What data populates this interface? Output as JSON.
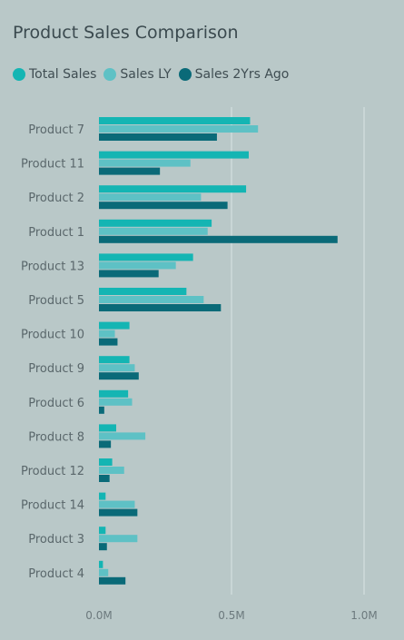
{
  "chart_data": {
    "type": "bar",
    "orientation": "horizontal",
    "title": "Product Sales Comparison",
    "categories": [
      "Product 7",
      "Product 11",
      "Product 2",
      "Product 1",
      "Product 13",
      "Product 5",
      "Product 10",
      "Product 9",
      "Product 6",
      "Product 8",
      "Product 12",
      "Product 14",
      "Product 3",
      "Product 4"
    ],
    "series": [
      {
        "name": "Total Sales",
        "color": "#14b5b3",
        "values": [
          0.57,
          0.565,
          0.555,
          0.425,
          0.355,
          0.33,
          0.115,
          0.115,
          0.11,
          0.065,
          0.05,
          0.025,
          0.025,
          0.015
        ]
      },
      {
        "name": "Sales LY",
        "color": "#5ec1c5",
        "values": [
          0.6,
          0.345,
          0.385,
          0.41,
          0.29,
          0.395,
          0.06,
          0.135,
          0.125,
          0.175,
          0.095,
          0.135,
          0.145,
          0.035
        ]
      },
      {
        "name": "Sales 2Yrs Ago",
        "color": "#0a6a78",
        "values": [
          0.445,
          0.23,
          0.485,
          0.9,
          0.225,
          0.46,
          0.07,
          0.15,
          0.02,
          0.045,
          0.04,
          0.145,
          0.03,
          0.1
        ]
      }
    ],
    "x_ticks": [
      "0.0M",
      "0.5M",
      "1.0M"
    ],
    "xlim": [
      0,
      1.0
    ],
    "grid": true,
    "legend_position": "top-left"
  }
}
